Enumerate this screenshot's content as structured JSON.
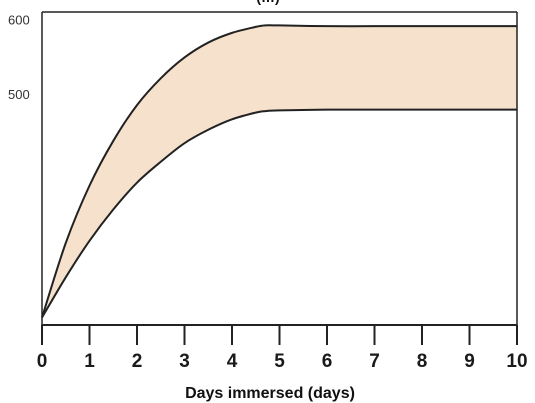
{
  "chart_data": {
    "type": "area",
    "title": "(…)",
    "xlabel": "Days immersed (days)",
    "ylabel": "",
    "x_ticks": [
      0,
      1,
      2,
      3,
      4,
      5,
      6,
      7,
      8,
      9,
      10
    ],
    "y_ticks": [
      500,
      600
    ],
    "xlim": [
      0,
      10
    ],
    "ylim": [
      190,
      610
    ],
    "grid": false,
    "legend": "none",
    "colors": {
      "band_fill": "#f5e1cc",
      "line": "#222222",
      "axis": "#222222"
    },
    "series": [
      {
        "role": "upper",
        "x": [
          0,
          0.5,
          1,
          1.5,
          2,
          2.5,
          3,
          3.5,
          4,
          4.5,
          4.7,
          5,
          6,
          7,
          8,
          9,
          10
        ],
        "values": [
          200,
          300,
          377,
          437,
          485,
          521,
          549,
          569,
          582,
          590,
          592,
          592,
          591,
          591,
          591,
          591,
          591
        ]
      },
      {
        "role": "lower",
        "x": [
          0,
          0.5,
          1,
          1.5,
          2,
          2.5,
          3,
          3.5,
          4,
          4.5,
          4.7,
          5,
          6,
          7,
          8,
          9,
          10
        ],
        "values": [
          200,
          254,
          303,
          345,
          381,
          409,
          434,
          452,
          466,
          475,
          477,
          478,
          479,
          479,
          479,
          479,
          479
        ]
      }
    ]
  }
}
